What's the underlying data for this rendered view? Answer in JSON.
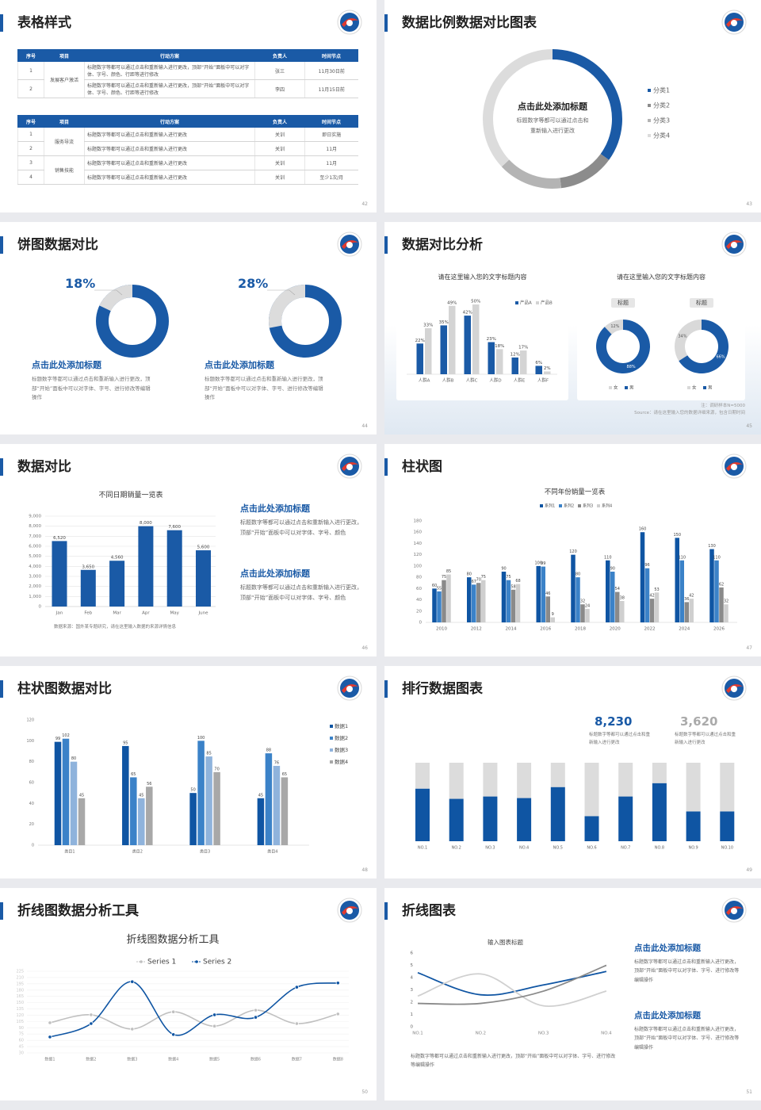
{
  "slides": [
    {
      "title": "表格样式",
      "page": 42,
      "tables": [
        {
          "header": [
            "序号",
            "项目",
            "行动方案",
            "负责人",
            "时间节点"
          ],
          "groups": [
            {
              "project": "发展客户激活",
              "rows": [
                [
                  "1",
                  "标题数字等都可以通过点击和重新输入进行更改，顶部“开始”面板中可以对字体、字号、颜色、行距等进行修改",
                  "张三",
                  "11月30日前"
                ],
                [
                  "2",
                  "标题数字等都可以通过点击和重新输入进行更改，顶部“开始”面板中可以对字体、字号、颜色、行距等进行修改",
                  "李四",
                  "11月15日前"
                ]
              ]
            }
          ]
        },
        {
          "header": [
            "序号",
            "项目",
            "行动方案",
            "负责人",
            "时间节点"
          ],
          "groups": [
            {
              "project": "服务导流",
              "rows": [
                [
                  "1",
                  "标题数字等都可以通过点击和重新输入进行更改",
                  "关训",
                  "即日实施"
                ],
                [
                  "2",
                  "标题数字等都可以通过点击和重新输入进行更改",
                  "关训",
                  "11月"
                ]
              ]
            },
            {
              "project": "销售技能",
              "rows": [
                [
                  "3",
                  "标题数字等都可以通过点击和重新输入进行更改",
                  "关训",
                  "11月"
                ],
                [
                  "4",
                  "标题数字等都可以通过点击和重新输入进行更改",
                  "关训",
                  "至少1次/月"
                ]
              ]
            }
          ]
        }
      ]
    },
    {
      "title": "数据比例数据对比图表",
      "page": 43,
      "chart": {
        "type": "donut",
        "heading": "点击此处添加标题",
        "text": "标题数字等都可以通过点击和重新输入进行更改",
        "categories": [
          "分类1",
          "分类2",
          "分类3",
          "分类4"
        ],
        "values": [
          35,
          13,
          15,
          37
        ],
        "colors": [
          "#1a5aa6",
          "#8c8c8c",
          "#b4b4b4",
          "#dcdcdc"
        ]
      }
    },
    {
      "title": "饼图数据对比",
      "page": 44,
      "charts": [
        {
          "type": "ring",
          "values": [
            18
          ],
          "value_labels": [
            "18%"
          ],
          "color": "#dcdcdc",
          "track_color": "#1a5aa6",
          "heading": "点击此处添加标题",
          "text": "标题数字等都可以通过点击和重新输入进行更改，顶部“开始”面板中可以对字体、字号、进行修改等编辑操作"
        },
        {
          "type": "ring",
          "values": [
            28
          ],
          "value_labels": [
            "28%"
          ],
          "color": "#dcdcdc",
          "track_color": "#1a5aa6",
          "heading": "点击此处添加标题",
          "text": "标题数字等都可以通过点击和重新输入进行更改，顶部“开始”面板中可以对字体、字号、进行修改等编辑操作"
        }
      ]
    },
    {
      "title": "数据对比分析",
      "page": 45,
      "charts": [
        {
          "type": "bar",
          "title": "请在这里输入您的文字标题内容",
          "categories": [
            "人群A",
            "人群B",
            "人群C",
            "人群D",
            "人群E",
            "人群F"
          ],
          "series": [
            {
              "name": "产品A",
              "color": "#1a5aa6",
              "values": [
                22,
                35,
                42,
                23,
                12,
                6
              ],
              "value_labels": [
                "22%",
                "35%",
                "42%",
                "23%",
                "12%",
                "6%"
              ]
            },
            {
              "name": "产品B",
              "color": "#d4d4d4",
              "values": [
                33,
                49,
                50,
                18,
                17,
                2
              ],
              "value_labels": [
                "33%",
                "49%",
                "50%",
                "18%",
                "17%",
                "2%"
              ]
            }
          ]
        },
        {
          "type": "donut-pair",
          "title": "请在这里输入您的文字标题内容",
          "colors": [
            "#d9d9d9",
            "#1a5aa6"
          ],
          "donuts": [
            {
              "label": "标题",
              "categories": [
                "女",
                "男"
              ],
              "values": [
                12,
                88
              ],
              "value_labels": [
                "12%",
                "88%"
              ]
            },
            {
              "label": "标题",
              "categories": [
                "女",
                "男"
              ],
              "values": [
                34,
                66
              ],
              "value_labels": [
                "34%",
                "66%"
              ]
            }
          ]
        }
      ],
      "notes": [
        "注：调研样本N=5000",
        "Source：请在这里输入您的数据详细来源，包含日期时间"
      ]
    },
    {
      "title": "数据对比",
      "page": 46,
      "chart": {
        "type": "bar",
        "title": "不同日期销量一览表",
        "categories": [
          "Jan",
          "Feb",
          "Mar",
          "Apr",
          "May",
          "June"
        ],
        "values": [
          6520,
          3650,
          4560,
          8000,
          7600,
          5600
        ],
        "value_labels": [
          "6,520",
          "3,650",
          "4,560",
          "8,000",
          "7,600",
          "5,600"
        ],
        "color": "#1a5aa6",
        "ylim": [
          0,
          9000
        ],
        "yticks": [
          0,
          {
            "value": 1000,
            "label": "1,000"
          },
          {
            "value": 2000,
            "label": "2,000"
          },
          {
            "value": 3000,
            "label": "3,000"
          },
          {
            "value": 4000,
            "label": "4,000"
          },
          {
            "value": 5000,
            "label": "5,000"
          },
          {
            "value": 6000,
            "label": "6,000"
          },
          {
            "value": 7000,
            "label": "7,000"
          },
          {
            "value": 8000,
            "label": "8,000"
          },
          {
            "value": 9000,
            "label": "9,000"
          }
        ],
        "grid": true,
        "source": "数据来源：国外某专题研究，请在这里输入数据的来源详情信息"
      },
      "blocks": [
        {
          "heading": "点击此处添加标题",
          "text": "标题数字等都可以通过点击和重新输入进行更改，顶部“开始”面板中可以对字体、字号、颜色"
        },
        {
          "heading": "点击此处添加标题",
          "text": "标题数字等都可以通过点击和重新输入进行更改，顶部“开始”面板中可以对字体、字号、颜色"
        }
      ]
    },
    {
      "title": "柱状图",
      "page": 47,
      "chart": {
        "type": "bar",
        "title": "不同年份销量一览表",
        "categories": [
          "2010",
          "2012",
          "2014",
          "2016",
          "2018",
          "2020",
          "2022",
          "2024",
          "2026"
        ],
        "series": [
          {
            "name": "系列1",
            "color": "#0f55a3",
            "values": [
              60,
              80,
              90,
              100,
              120,
              110,
              160,
              150,
              130
            ]
          },
          {
            "name": "系列2",
            "color": "#3b82c8",
            "values": [
              55,
              67,
              75,
              99,
              80,
              90,
              96,
              110,
              110
            ]
          },
          {
            "name": "系列3",
            "color": "#8a8a8a",
            "values": [
              75,
              70,
              58,
              46,
              32,
              54,
              42,
              36,
              62
            ]
          },
          {
            "name": "系列4",
            "color": "#cfcfcf",
            "values": [
              85,
              75,
              68,
              9,
              24,
              38,
              53,
              42,
              32
            ]
          }
        ],
        "ylim": [
          0,
          180
        ],
        "yticks": [
          0,
          20,
          40,
          60,
          80,
          100,
          120,
          140,
          160,
          180
        ],
        "grid": false
      }
    },
    {
      "title": "柱状图数据对比",
      "page": 48,
      "chart": {
        "type": "bar",
        "categories": [
          "类目1",
          "类目2",
          "类目3",
          "类目4"
        ],
        "series": [
          {
            "name": "数据1",
            "color": "#0f55a3",
            "values": [
              99,
              95,
              50,
              45
            ]
          },
          {
            "name": "数据2",
            "color": "#3b82c8",
            "values": [
              102,
              65,
              100,
              88
            ]
          },
          {
            "name": "数据3",
            "color": "#8fb3dc",
            "values": [
              80,
              45,
              85,
              76
            ]
          },
          {
            "name": "数据4",
            "color": "#a8a8a8",
            "values": [
              45,
              56,
              70,
              65
            ]
          }
        ],
        "ylim": [
          0,
          120
        ],
        "yticks": [
          0,
          20,
          40,
          60,
          80,
          100,
          120
        ],
        "grid": false,
        "legend": "right"
      }
    },
    {
      "title": "排行数据图表",
      "page": 49,
      "stats": [
        {
          "value": "8,230",
          "text": "标题数字等都可以通过点击和重新输入进行更改"
        },
        {
          "value": "3,620",
          "text": "标题数字等都可以通过点击和重新输入进行更改"
        }
      ],
      "chart": {
        "type": "stacked-bar",
        "categories": [
          "NO.1",
          "NO.2",
          "NO.3",
          "NO.4",
          "NO.5",
          "NO.6",
          "NO.7",
          "NO.8",
          "NO.9",
          "NO.10"
        ],
        "series": [
          {
            "color": "#0f55a3",
            "values": [
              67,
              54,
              57,
              55,
              69,
              32,
              57,
              74,
              38,
              38
            ]
          },
          {
            "color": "#dcdcdc",
            "values": [
              33,
              46,
              43,
              45,
              31,
              68,
              43,
              26,
              62,
              62
            ]
          }
        ],
        "ylim": [
          0,
          100
        ]
      }
    },
    {
      "title": "折线图数据分析工具",
      "page": 50,
      "chart": {
        "type": "line",
        "title": "折线图数据分析工具",
        "categories": [
          "数据1",
          "数据2",
          "数据3",
          "数据4",
          "数据5",
          "数据6",
          "数据7",
          "数据8"
        ],
        "series": [
          {
            "name": "Series 1",
            "color": "#c0c0c0",
            "values": [
              102,
              121,
              87,
              128,
              94,
              132,
              100,
              123
            ]
          },
          {
            "name": "Series 2",
            "color": "#0f55a3",
            "values": [
              68,
              100,
              200,
              74,
              121,
              115,
              187,
              197
            ]
          }
        ],
        "ylim": [
          30,
          225
        ],
        "yticks": [
          30,
          45,
          60,
          75,
          90,
          105,
          120,
          135,
          150,
          165,
          180,
          195,
          210,
          225
        ],
        "grid": true,
        "markers": true
      }
    },
    {
      "title": "折线图表",
      "page": 51,
      "chart": {
        "type": "line",
        "title": "输入图表标题",
        "categories": [
          "NO.1",
          "NO.2",
          "NO.3",
          "NO.4"
        ],
        "series": [
          {
            "color": "#0f55a3",
            "values": [
              4.4,
              2.6,
              3.4,
              4.5
            ]
          },
          {
            "color": "#d0d0d0",
            "values": [
              2.5,
              4.3,
              1.7,
              2.9
            ]
          },
          {
            "color": "#8a8a8a",
            "values": [
              1.9,
              1.9,
              2.9,
              5.0
            ]
          }
        ],
        "ylim": [
          0,
          6
        ],
        "yticks": [
          0,
          1,
          2,
          3,
          4,
          5,
          6
        ],
        "grid": false,
        "markers": false
      },
      "blocks": [
        {
          "heading": "点击此处添加标题",
          "text": "标题数字等都可以通过点击和重新输入进行更改，顶部“开始”面板中可以对字体、字号、进行修改等编辑操作"
        },
        {
          "heading": "点击此处添加标题",
          "text": "标题数字等都可以通过点击和重新输入进行更改，顶部“开始”面板中可以对字体、字号、进行修改等编辑操作"
        }
      ],
      "text": "标题数字等都可以通过点击和重新输入进行更改，顶部“开始”面板中可以对字体、字号、进行修改等编辑操作"
    }
  ]
}
